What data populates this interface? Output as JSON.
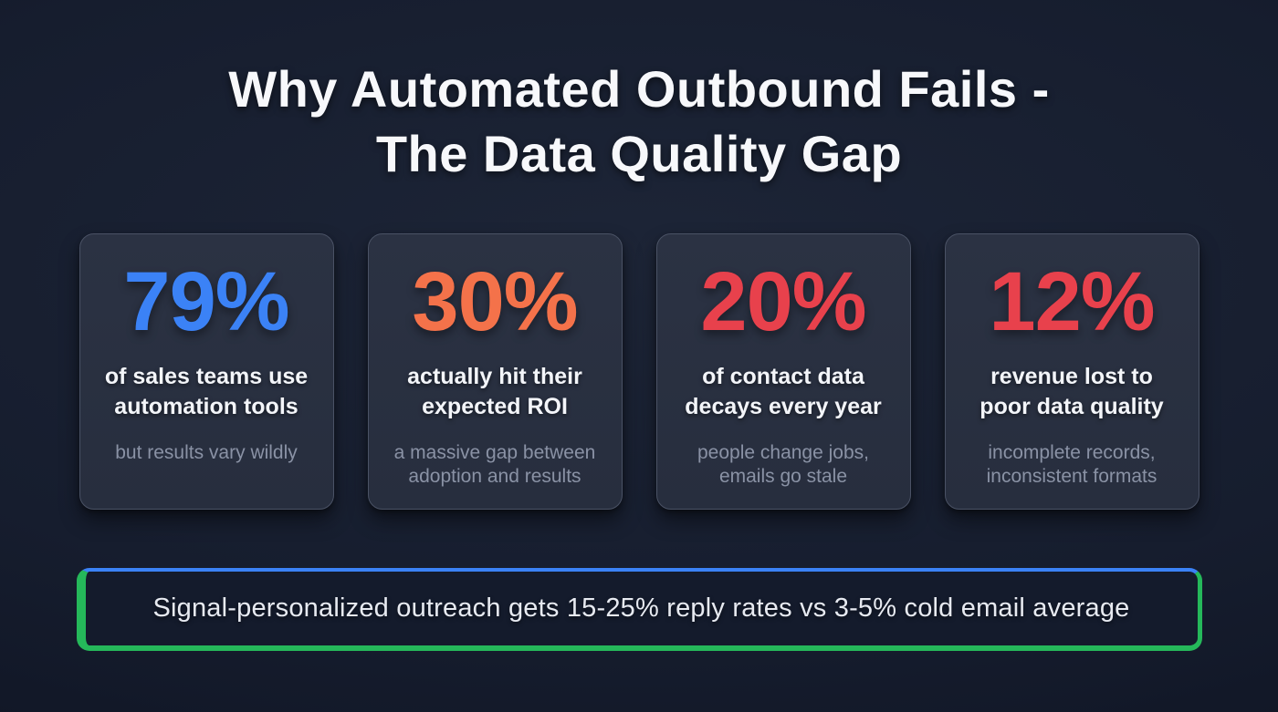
{
  "title": {
    "line1": "Why Automated Outbound Fails -",
    "line2": "The Data Quality Gap"
  },
  "cards": [
    {
      "value": "79%",
      "value_color": "#3b82f6",
      "headline": "of sales teams use automation tools",
      "caption": "but results vary wildly"
    },
    {
      "value": "30%",
      "value_color": "#f4724a",
      "headline": "actually hit their expected ROI",
      "caption": "a massive gap between adoption and results"
    },
    {
      "value": "20%",
      "value_color": "#e8414c",
      "headline": "of contact data decays every year",
      "caption": "people change jobs, emails go stale"
    },
    {
      "value": "12%",
      "value_color": "#e8414c",
      "headline": "revenue lost to poor data quality",
      "caption": "incomplete records, inconsistent formats"
    }
  ],
  "banner": {
    "text": "Signal-personalized outreach gets 15-25% reply rates vs 3-5% cold email average",
    "border_top_color": "#3b82f6",
    "border_side_color": "#25b85a"
  }
}
